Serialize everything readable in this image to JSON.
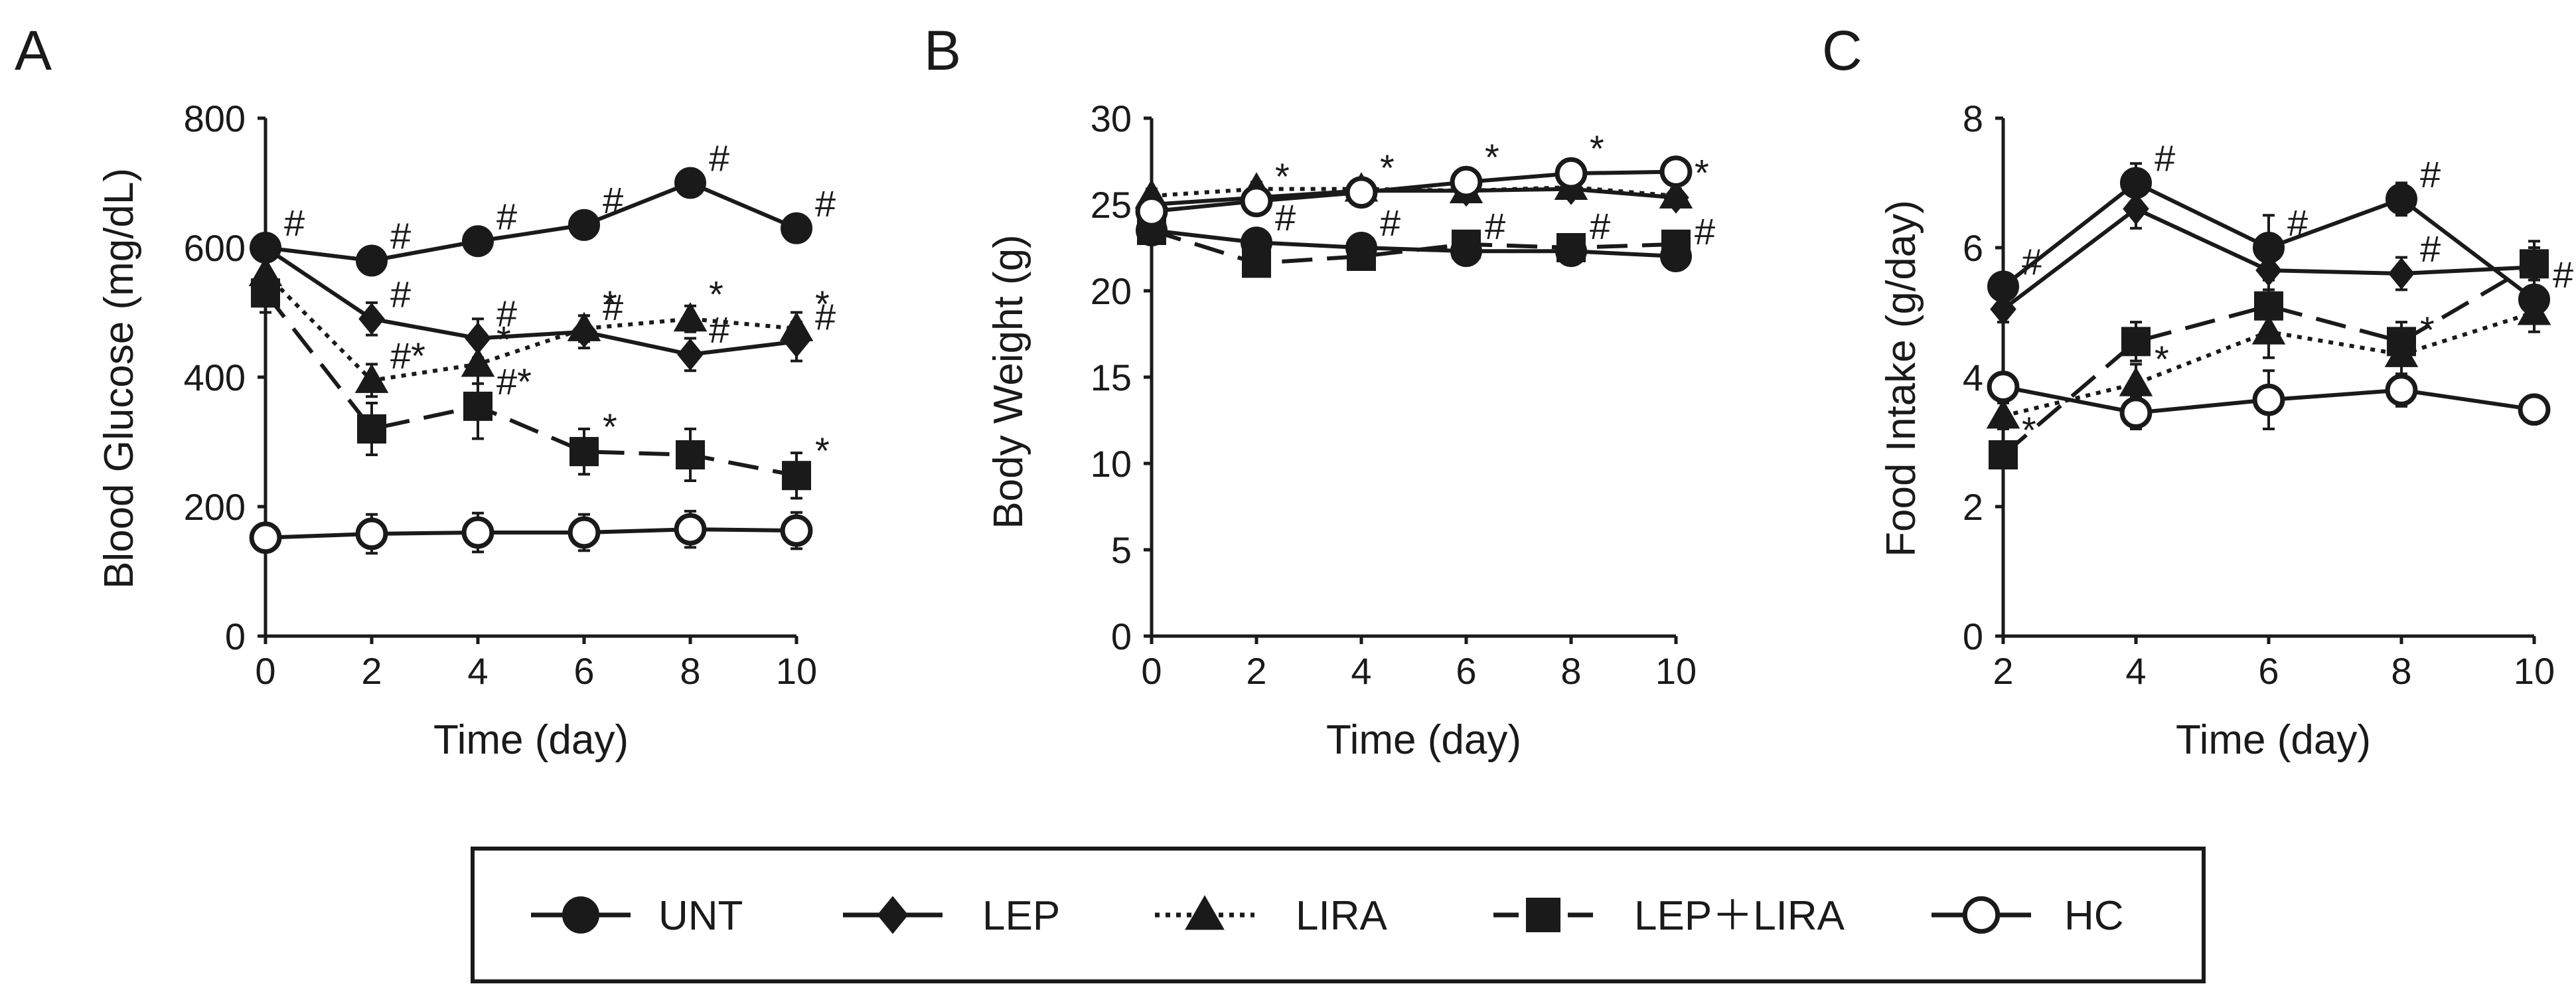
{
  "figure": {
    "background": "#ffffff",
    "ink": "#1a1a1a"
  },
  "legend": {
    "items": [
      {
        "label": "UNT",
        "marker": "circle-filled",
        "dash": "solid"
      },
      {
        "label": "LEP",
        "marker": "diamond-filled",
        "dash": "solid"
      },
      {
        "label": "LIRA",
        "marker": "triangle-filled",
        "dash": "dotted"
      },
      {
        "label": "LEP＋LIRA",
        "marker": "square-filled",
        "dash": "dashed"
      },
      {
        "label": "HC",
        "marker": "circle-open",
        "dash": "solid"
      }
    ]
  },
  "chart_data": [
    {
      "panel": "A",
      "type": "line",
      "title": "",
      "xlabel": "Time (day)",
      "ylabel": "Blood Glucose (mg/dL)",
      "xlim": [
        0,
        10
      ],
      "ylim": [
        0,
        800
      ],
      "xticks": [
        0,
        2,
        4,
        6,
        8,
        10
      ],
      "yticks": [
        0,
        200,
        400,
        600,
        800
      ],
      "grid": false,
      "series": [
        {
          "name": "UNT",
          "x": [
            0,
            2,
            4,
            6,
            8,
            10
          ],
          "y": [
            600,
            580,
            610,
            635,
            700,
            630
          ],
          "err": [
            20,
            18,
            20,
            15,
            15,
            15
          ],
          "marker": "circle-filled",
          "dash": "solid",
          "annotations": [
            {
              "i": 0,
              "text": "#"
            },
            {
              "i": 1,
              "text": "#"
            },
            {
              "i": 2,
              "text": "#"
            },
            {
              "i": 3,
              "text": "#"
            },
            {
              "i": 4,
              "text": "#"
            },
            {
              "i": 5,
              "text": "#"
            }
          ]
        },
        {
          "name": "LEP",
          "x": [
            0,
            2,
            4,
            6,
            8,
            10
          ],
          "y": [
            600,
            490,
            460,
            470,
            435,
            455
          ],
          "err": [
            20,
            25,
            30,
            25,
            25,
            30
          ],
          "marker": "diamond-filled",
          "dash": "solid",
          "annotations": [
            {
              "i": 1,
              "text": "#"
            },
            {
              "i": 2,
              "text": "#"
            },
            {
              "i": 3,
              "text": "#"
            },
            {
              "i": 4,
              "text": "#"
            },
            {
              "i": 5,
              "text": "#"
            }
          ]
        },
        {
          "name": "LIRA",
          "x": [
            0,
            2,
            4,
            6,
            8,
            10
          ],
          "y": [
            560,
            395,
            420,
            475,
            490,
            475
          ],
          "err": [
            25,
            25,
            30,
            20,
            20,
            25
          ],
          "marker": "triangle-filled",
          "dash": "dotted",
          "annotations": [
            {
              "i": 1,
              "text": "#*"
            },
            {
              "i": 2,
              "text": "*"
            },
            {
              "i": 3,
              "text": "*"
            },
            {
              "i": 4,
              "text": "*"
            },
            {
              "i": 5,
              "text": "*"
            }
          ]
        },
        {
          "name": "LEP＋LIRA",
          "x": [
            0,
            2,
            4,
            6,
            8,
            10
          ],
          "y": [
            530,
            320,
            355,
            285,
            280,
            248
          ],
          "err": [
            30,
            40,
            50,
            35,
            40,
            35
          ],
          "marker": "square-filled",
          "dash": "dashed",
          "annotations": [
            {
              "i": 2,
              "text": "#*"
            },
            {
              "i": 3,
              "text": "*"
            },
            {
              "i": 5,
              "text": "*"
            }
          ]
        },
        {
          "name": "HC",
          "x": [
            0,
            2,
            4,
            6,
            8,
            10
          ],
          "y": [
            152,
            158,
            160,
            160,
            165,
            163
          ],
          "err": [
            15,
            30,
            30,
            28,
            28,
            28
          ],
          "marker": "circle-open",
          "dash": "solid",
          "annotations": []
        }
      ]
    },
    {
      "panel": "B",
      "type": "line",
      "title": "",
      "xlabel": "Time (day)",
      "ylabel": "Body Weight (g)",
      "xlim": [
        0,
        10
      ],
      "ylim": [
        0,
        30
      ],
      "xticks": [
        0,
        2,
        4,
        6,
        8,
        10
      ],
      "yticks": [
        0,
        5,
        10,
        15,
        20,
        25,
        30
      ],
      "grid": false,
      "series": [
        {
          "name": "UNT",
          "x": [
            0,
            2,
            4,
            6,
            8,
            10
          ],
          "y": [
            23.5,
            22.8,
            22.5,
            22.3,
            22.3,
            22.0
          ],
          "err": [
            0.5,
            0.4,
            0.4,
            0.4,
            0.4,
            0.4
          ],
          "marker": "circle-filled",
          "dash": "solid",
          "annotations": [
            {
              "i": 1,
              "text": "#"
            },
            {
              "i": 2,
              "text": "#"
            },
            {
              "i": 3,
              "text": "#"
            },
            {
              "i": 4,
              "text": "#"
            },
            {
              "i": 5,
              "text": "#"
            }
          ]
        },
        {
          "name": "LEP",
          "x": [
            0,
            2,
            4,
            6,
            8,
            10
          ],
          "y": [
            25.0,
            25.4,
            25.8,
            25.8,
            25.9,
            25.4
          ],
          "err": [
            0.4,
            0.4,
            0.4,
            0.4,
            0.4,
            0.4
          ],
          "marker": "diamond-filled",
          "dash": "solid",
          "annotations": [
            {
              "i": 5,
              "text": "*"
            }
          ]
        },
        {
          "name": "LIRA",
          "x": [
            0,
            2,
            4,
            6,
            8,
            10
          ],
          "y": [
            25.5,
            25.9,
            25.9,
            25.8,
            26.0,
            25.5
          ],
          "err": [
            0.4,
            0.4,
            0.4,
            0.4,
            0.4,
            0.4
          ],
          "marker": "triangle-filled",
          "dash": "dotted",
          "annotations": []
        },
        {
          "name": "LEP＋LIRA",
          "x": [
            0,
            2,
            4,
            6,
            8,
            10
          ],
          "y": [
            23.5,
            21.6,
            22.0,
            22.7,
            22.5,
            22.7
          ],
          "err": [
            0.5,
            0.5,
            0.5,
            0.5,
            0.5,
            0.5
          ],
          "marker": "square-filled",
          "dash": "dashed",
          "annotations": []
        },
        {
          "name": "HC",
          "x": [
            0,
            2,
            4,
            6,
            8,
            10
          ],
          "y": [
            24.6,
            25.2,
            25.7,
            26.3,
            26.8,
            26.9
          ],
          "err": [
            0.4,
            0.4,
            0.4,
            0.4,
            0.4,
            0.4
          ],
          "marker": "circle-open",
          "dash": "solid",
          "annotations": [
            {
              "i": 1,
              "text": "*"
            },
            {
              "i": 2,
              "text": "*"
            },
            {
              "i": 3,
              "text": "*"
            },
            {
              "i": 4,
              "text": "*"
            }
          ]
        }
      ]
    },
    {
      "panel": "C",
      "type": "line",
      "title": "",
      "xlabel": "Time (day)",
      "ylabel": "Food Intake (g/day)",
      "xlim": [
        2,
        10
      ],
      "ylim": [
        0,
        8
      ],
      "xticks": [
        2,
        4,
        6,
        8,
        10
      ],
      "yticks": [
        0,
        2,
        4,
        6,
        8
      ],
      "grid": false,
      "series": [
        {
          "name": "UNT",
          "x": [
            2,
            4,
            6,
            8,
            10
          ],
          "y": [
            5.4,
            7.0,
            6.0,
            6.75,
            5.2
          ],
          "err": [
            0.2,
            0.3,
            0.5,
            0.25,
            0.3
          ],
          "marker": "circle-filled",
          "dash": "solid",
          "annotations": [
            {
              "i": 0,
              "text": "#"
            },
            {
              "i": 1,
              "text": "#"
            },
            {
              "i": 2,
              "text": "#"
            },
            {
              "i": 3,
              "text": "#"
            },
            {
              "i": 4,
              "text": "#"
            }
          ]
        },
        {
          "name": "LEP",
          "x": [
            2,
            4,
            6,
            8,
            10
          ],
          "y": [
            5.05,
            6.6,
            5.65,
            5.6,
            5.7
          ],
          "err": [
            0.2,
            0.3,
            0.3,
            0.25,
            0.3
          ],
          "marker": "diamond-filled",
          "dash": "solid",
          "annotations": [
            {
              "i": 3,
              "text": "#"
            }
          ]
        },
        {
          "name": "LIRA",
          "x": [
            2,
            4,
            6,
            8,
            10
          ],
          "y": [
            3.4,
            3.9,
            4.7,
            4.35,
            5.0
          ],
          "err": [
            0.2,
            0.3,
            0.4,
            0.3,
            0.3
          ],
          "marker": "triangle-filled",
          "dash": "dotted",
          "annotations": [
            {
              "i": 1,
              "text": "*"
            },
            {
              "i": 3,
              "text": "*"
            }
          ]
        },
        {
          "name": "LEP＋LIRA",
          "x": [
            2,
            4,
            6,
            8,
            10
          ],
          "y": [
            2.8,
            4.55,
            5.1,
            4.55,
            5.75
          ],
          "err": [
            0.2,
            0.3,
            0.4,
            0.3,
            0.35
          ],
          "marker": "square-filled",
          "dash": "dashed",
          "annotations": [
            {
              "i": 0,
              "text": "*"
            }
          ]
        },
        {
          "name": "HC",
          "x": [
            2,
            4,
            6,
            8,
            10
          ],
          "y": [
            3.85,
            3.45,
            3.65,
            3.8,
            3.5
          ],
          "err": [
            0.2,
            0.25,
            0.45,
            0.25,
            0.2
          ],
          "marker": "circle-open",
          "dash": "solid",
          "annotations": []
        }
      ]
    }
  ]
}
